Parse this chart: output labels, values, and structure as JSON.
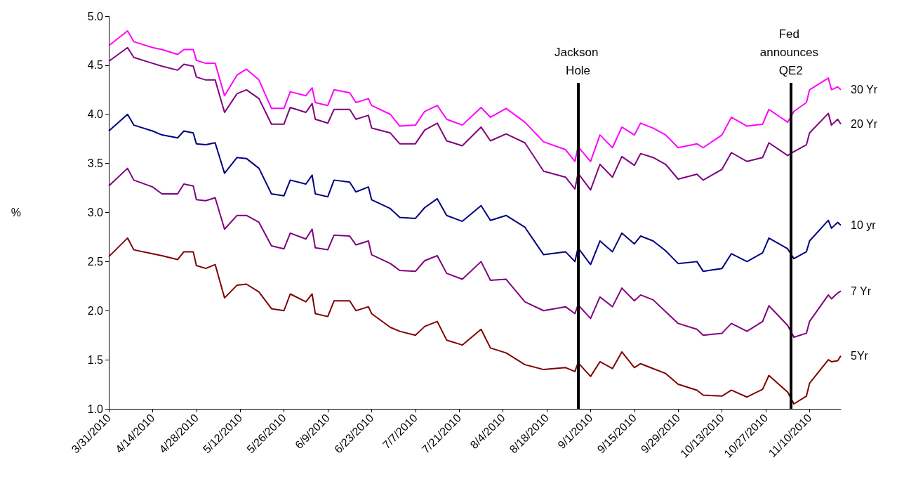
{
  "chart_data": {
    "type": "line",
    "ylabel": "%",
    "x": [
      "2010-03-31",
      "2010-04-06",
      "2010-04-08",
      "2010-04-14",
      "2010-04-17",
      "2010-04-22",
      "2010-04-24",
      "2010-04-27",
      "2010-04-28",
      "2010-05-01",
      "2010-05-04",
      "2010-05-07",
      "2010-05-11",
      "2010-05-14",
      "2010-05-18",
      "2010-05-22",
      "2010-05-26",
      "2010-05-28",
      "2010-06-02",
      "2010-06-04",
      "2010-06-05",
      "2010-06-09",
      "2010-06-11",
      "2010-06-16",
      "2010-06-18",
      "2010-06-22",
      "2010-06-23",
      "2010-06-29",
      "2010-07-02",
      "2010-07-07",
      "2010-07-10",
      "2010-07-14",
      "2010-07-17",
      "2010-07-22",
      "2010-07-28",
      "2010-07-31",
      "2010-08-05",
      "2010-08-11",
      "2010-08-17",
      "2010-08-24",
      "2010-08-27",
      "2010-08-28",
      "2010-09-01",
      "2010-09-04",
      "2010-09-08",
      "2010-09-11",
      "2010-09-15",
      "2010-09-17",
      "2010-09-21",
      "2010-09-25",
      "2010-09-29",
      "2010-10-05",
      "2010-10-07",
      "2010-10-13",
      "2010-10-16",
      "2010-10-21",
      "2010-10-26",
      "2010-10-28",
      "2010-11-03",
      "2010-11-05",
      "2010-11-09",
      "2010-11-10",
      "2010-11-16",
      "2010-11-17",
      "2010-11-19",
      "2010-11-20"
    ],
    "series": [
      {
        "name": "30 Yr",
        "color": "#ff00ff",
        "values": [
          4.7,
          4.85,
          4.74,
          4.68,
          4.66,
          4.61,
          4.66,
          4.66,
          4.55,
          4.52,
          4.52,
          4.19,
          4.4,
          4.46,
          4.35,
          4.06,
          4.06,
          4.23,
          4.19,
          4.27,
          4.12,
          4.09,
          4.25,
          4.22,
          4.12,
          4.16,
          4.09,
          4.0,
          3.88,
          3.89,
          4.03,
          4.09,
          3.95,
          3.89,
          4.07,
          3.97,
          4.06,
          3.92,
          3.72,
          3.64,
          3.52,
          3.67,
          3.52,
          3.79,
          3.66,
          3.87,
          3.79,
          3.91,
          3.86,
          3.79,
          3.66,
          3.7,
          3.66,
          3.79,
          3.97,
          3.88,
          3.9,
          4.05,
          3.92,
          4.03,
          4.12,
          4.25,
          4.37,
          4.25,
          4.28,
          4.25
        ]
      },
      {
        "name": "20 Yr",
        "color": "#800080",
        "values": [
          4.54,
          4.68,
          4.58,
          4.52,
          4.49,
          4.45,
          4.51,
          4.49,
          4.38,
          4.35,
          4.35,
          4.02,
          4.21,
          4.25,
          4.16,
          3.9,
          3.9,
          4.07,
          4.02,
          4.11,
          3.95,
          3.91,
          4.05,
          4.05,
          3.95,
          3.99,
          3.86,
          3.81,
          3.7,
          3.7,
          3.84,
          3.91,
          3.73,
          3.68,
          3.87,
          3.73,
          3.8,
          3.71,
          3.42,
          3.36,
          3.24,
          3.4,
          3.23,
          3.49,
          3.36,
          3.57,
          3.48,
          3.6,
          3.56,
          3.49,
          3.34,
          3.39,
          3.33,
          3.44,
          3.61,
          3.52,
          3.56,
          3.71,
          3.58,
          3.62,
          3.69,
          3.81,
          4.01,
          3.89,
          3.95,
          3.9
        ]
      },
      {
        "name": "10 yr",
        "color": "#000080",
        "values": [
          3.83,
          4.0,
          3.89,
          3.83,
          3.79,
          3.76,
          3.83,
          3.81,
          3.7,
          3.69,
          3.71,
          3.4,
          3.56,
          3.55,
          3.45,
          3.19,
          3.17,
          3.33,
          3.29,
          3.38,
          3.19,
          3.16,
          3.33,
          3.31,
          3.21,
          3.26,
          3.13,
          3.04,
          2.95,
          2.94,
          3.05,
          3.14,
          2.97,
          2.91,
          3.07,
          2.92,
          2.97,
          2.85,
          2.57,
          2.6,
          2.5,
          2.64,
          2.47,
          2.71,
          2.6,
          2.79,
          2.68,
          2.76,
          2.71,
          2.61,
          2.48,
          2.5,
          2.4,
          2.43,
          2.58,
          2.5,
          2.59,
          2.74,
          2.63,
          2.53,
          2.6,
          2.71,
          2.92,
          2.84,
          2.9,
          2.87
        ]
      },
      {
        "name": "7 Yr",
        "color": "#800080",
        "values": [
          3.27,
          3.45,
          3.33,
          3.26,
          3.19,
          3.19,
          3.29,
          3.27,
          3.13,
          3.12,
          3.15,
          2.83,
          2.97,
          2.97,
          2.9,
          2.66,
          2.63,
          2.79,
          2.73,
          2.83,
          2.64,
          2.62,
          2.77,
          2.76,
          2.67,
          2.71,
          2.57,
          2.48,
          2.41,
          2.4,
          2.51,
          2.56,
          2.38,
          2.32,
          2.5,
          2.31,
          2.32,
          2.09,
          2.0,
          2.04,
          1.97,
          2.06,
          1.92,
          2.14,
          2.04,
          2.23,
          2.1,
          2.16,
          2.11,
          1.99,
          1.87,
          1.81,
          1.75,
          1.77,
          1.87,
          1.79,
          1.89,
          2.05,
          1.85,
          1.73,
          1.77,
          1.89,
          2.16,
          2.12,
          2.18,
          2.2
        ]
      },
      {
        "name": "5Yr",
        "color": "#800000",
        "values": [
          2.55,
          2.74,
          2.62,
          2.58,
          2.56,
          2.52,
          2.6,
          2.6,
          2.46,
          2.43,
          2.47,
          2.13,
          2.26,
          2.27,
          2.19,
          2.02,
          2.0,
          2.17,
          2.09,
          2.17,
          1.97,
          1.94,
          2.1,
          2.1,
          2.0,
          2.04,
          1.97,
          1.83,
          1.79,
          1.75,
          1.84,
          1.89,
          1.7,
          1.65,
          1.81,
          1.62,
          1.57,
          1.45,
          1.4,
          1.42,
          1.38,
          1.47,
          1.33,
          1.48,
          1.41,
          1.58,
          1.42,
          1.46,
          1.41,
          1.36,
          1.25,
          1.19,
          1.14,
          1.13,
          1.19,
          1.12,
          1.2,
          1.34,
          1.17,
          1.05,
          1.13,
          1.26,
          1.5,
          1.48,
          1.49,
          1.54
        ]
      }
    ],
    "xlim": [
      "2010-03-31",
      "2010-11-20"
    ],
    "xticks": [
      {
        "value": "2010-03-31",
        "label": "3/31/2010"
      },
      {
        "value": "2010-04-14",
        "label": "4/14/2010"
      },
      {
        "value": "2010-04-28",
        "label": "4/28/2010"
      },
      {
        "value": "2010-05-12",
        "label": "5/12/2010"
      },
      {
        "value": "2010-05-26",
        "label": "5/26/2010"
      },
      {
        "value": "2010-06-09",
        "label": "6/9/2010"
      },
      {
        "value": "2010-06-23",
        "label": "6/23/2010"
      },
      {
        "value": "2010-07-07",
        "label": "7/7/2010"
      },
      {
        "value": "2010-07-21",
        "label": "7/21/2010"
      },
      {
        "value": "2010-08-04",
        "label": "8/4/2010"
      },
      {
        "value": "2010-08-18",
        "label": "8/18/2010"
      },
      {
        "value": "2010-09-01",
        "label": "9/1/2010"
      },
      {
        "value": "2010-09-15",
        "label": "9/15/2010"
      },
      {
        "value": "2010-09-29",
        "label": "9/29/2010"
      },
      {
        "value": "2010-10-13",
        "label": "10/13/2010"
      },
      {
        "value": "2010-10-27",
        "label": "10/27/2010"
      },
      {
        "value": "2010-11-10",
        "label": "11/10/2010"
      }
    ],
    "ylim": [
      1.0,
      5.0
    ],
    "yticks": [
      {
        "value": 1.0,
        "label": "1.0"
      },
      1.5,
      {
        "value": 2.0,
        "label": "2.0"
      },
      2.5,
      {
        "value": 3.0,
        "label": "3.0"
      },
      3.5,
      {
        "value": 4.0,
        "label": "4.0"
      },
      4.5,
      {
        "value": 5.0,
        "label": "5.0"
      }
    ],
    "ref_lines": [
      {
        "axis": "x",
        "value": "2010-08-28",
        "label": "Jackson Hole",
        "color": "#000000"
      },
      {
        "axis": "x",
        "value": "2010-11-04",
        "label": "Fed announces QE2",
        "color": "#000000"
      }
    ],
    "grid": false,
    "marker": "none",
    "line_style": "solid"
  }
}
